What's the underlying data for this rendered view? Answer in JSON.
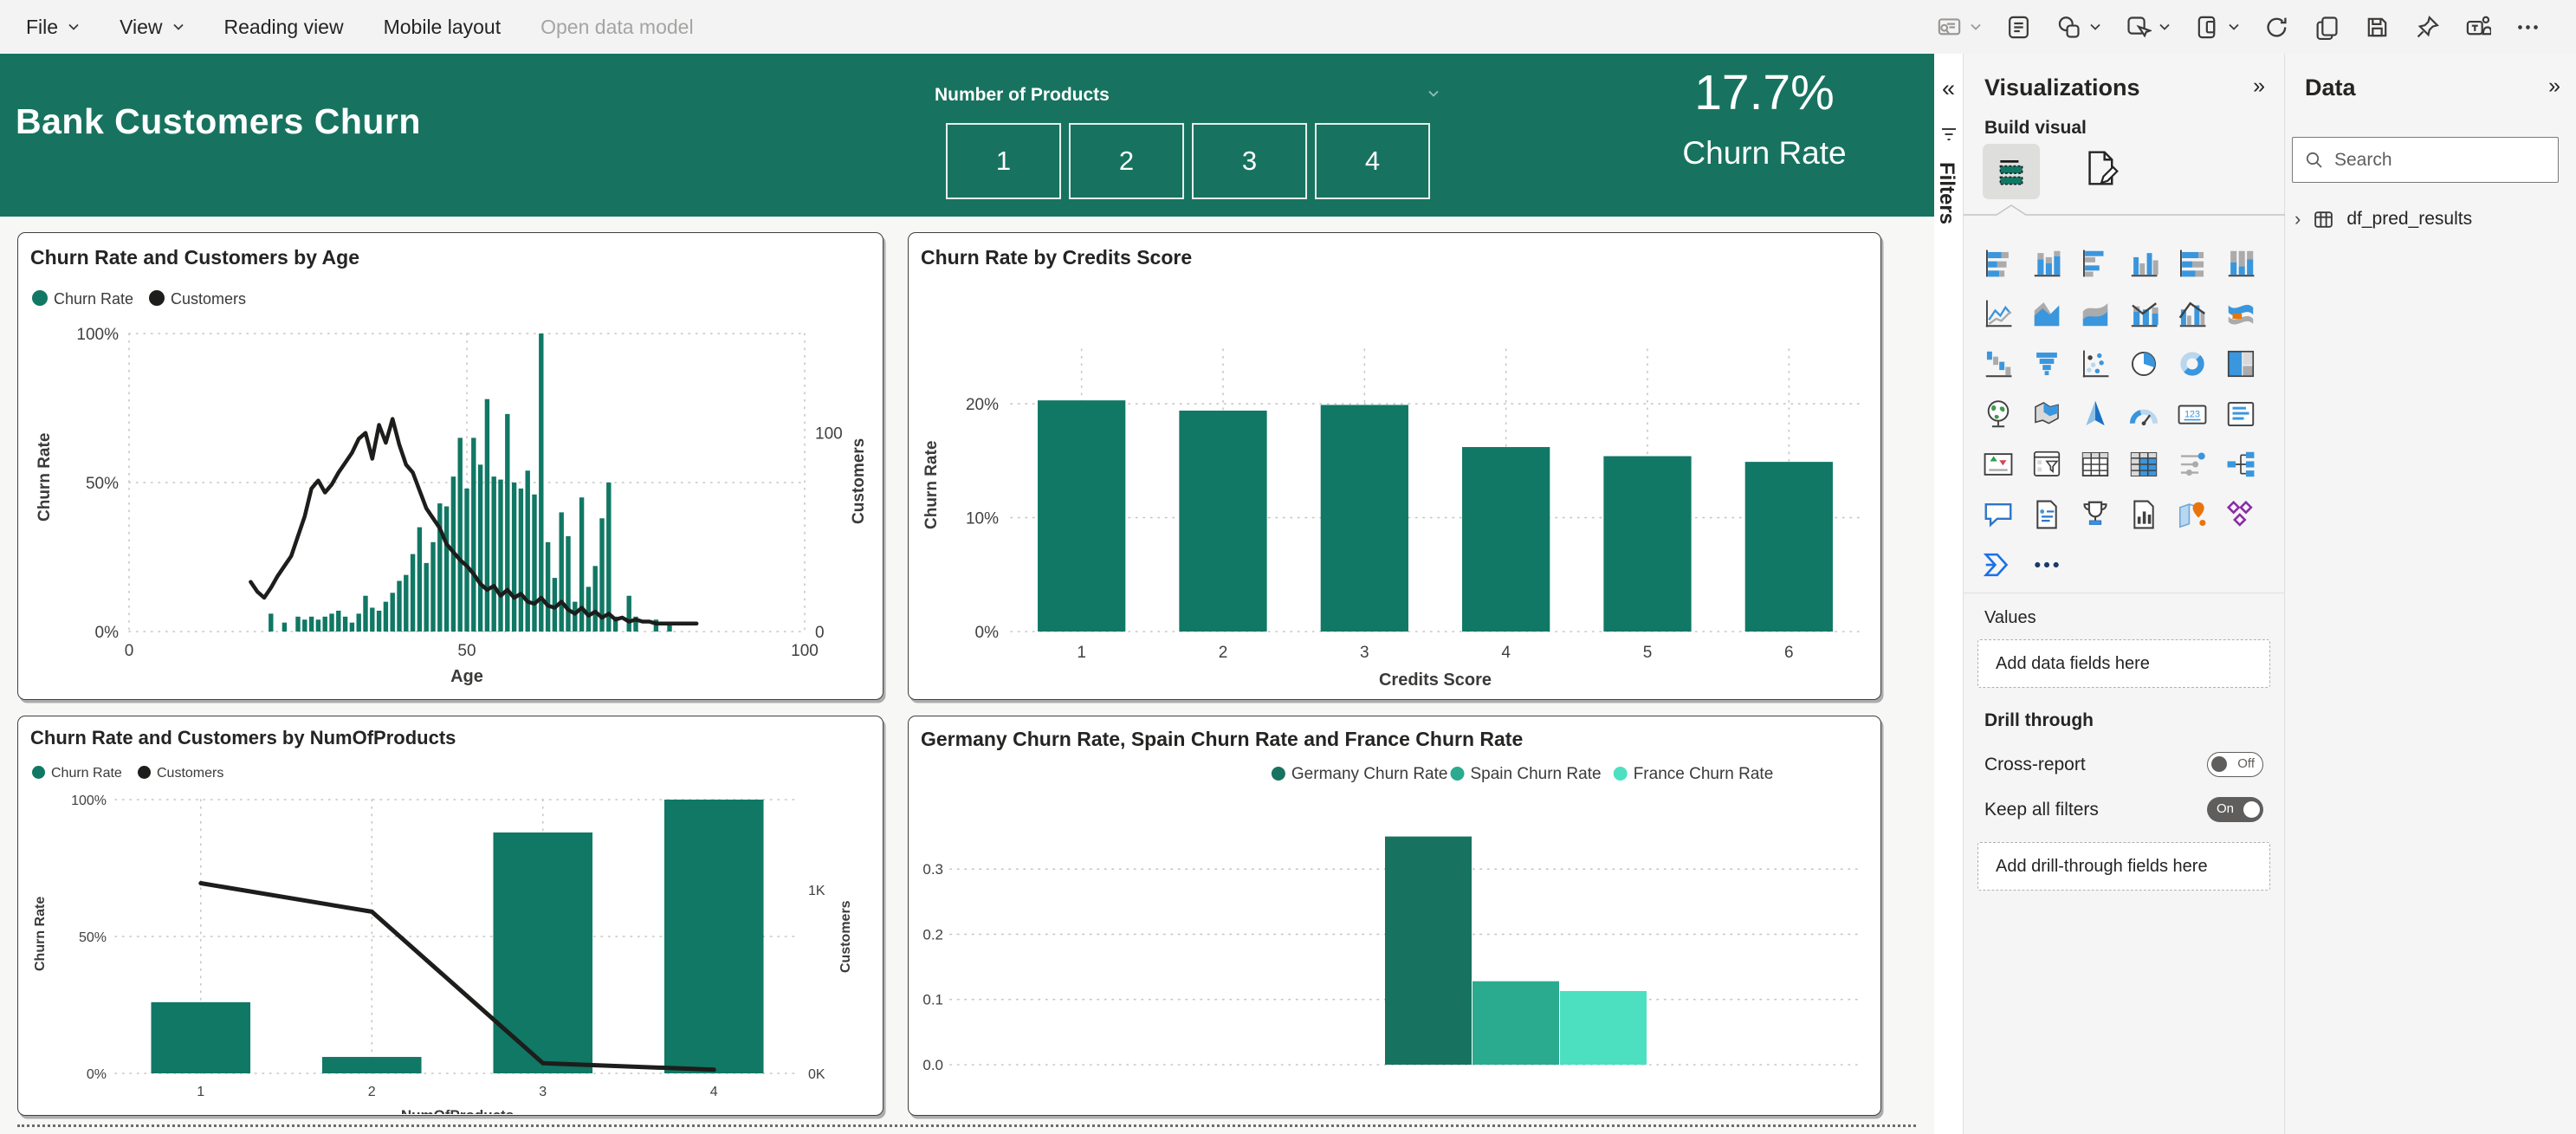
{
  "menu_bar": {
    "items": [
      {
        "label": "File",
        "chevron": true,
        "disabled": false
      },
      {
        "label": "View",
        "chevron": true,
        "disabled": false
      },
      {
        "label": "Reading view",
        "chevron": false,
        "disabled": false
      },
      {
        "label": "Mobile layout",
        "chevron": false,
        "disabled": false
      },
      {
        "label": "Open data model",
        "chevron": false,
        "disabled": true
      }
    ],
    "toolbar_icons": [
      {
        "name": "insights",
        "chevron": true,
        "disabled": true
      },
      {
        "name": "text-box",
        "chevron": false,
        "disabled": false
      },
      {
        "name": "shapes",
        "chevron": true,
        "disabled": false
      },
      {
        "name": "select",
        "chevron": true,
        "disabled": false
      },
      {
        "name": "page-view",
        "chevron": true,
        "disabled": false
      },
      {
        "name": "refresh",
        "chevron": false,
        "disabled": false
      },
      {
        "name": "duplicate-page",
        "chevron": false,
        "disabled": false
      },
      {
        "name": "save",
        "chevron": false,
        "disabled": false
      },
      {
        "name": "pin",
        "chevron": false,
        "disabled": false
      },
      {
        "name": "teams",
        "chevron": false,
        "disabled": false
      },
      {
        "name": "more-options",
        "chevron": false,
        "disabled": false
      }
    ]
  },
  "header": {
    "title": "Bank Customers Churn",
    "slicer": {
      "label": "Number of Products",
      "options": [
        "1",
        "2",
        "3",
        "4"
      ]
    },
    "kpi": {
      "value": "17.7%",
      "label": "Churn Rate"
    }
  },
  "filters_rail": {
    "collapse_icon": "«",
    "label": "Filters"
  },
  "visualizations_panel": {
    "title": "Visualizations",
    "collapse_icon": "»",
    "build_visual_label": "Build visual",
    "gallery_icons": [
      "stacked-bar-chart",
      "stacked-column-chart",
      "clustered-bar-chart",
      "clustered-column-chart",
      "100-stacked-bar-chart",
      "100-stacked-column-chart",
      "line-chart",
      "area-chart",
      "stacked-area-chart",
      "line-and-stacked-column-chart",
      "line-and-clustered-column-chart",
      "ribbon-chart",
      "waterfall-chart",
      "funnel-chart",
      "scatter-chart",
      "pie-chart",
      "donut-chart",
      "treemap",
      "map",
      "filled-map",
      "azure-map",
      "gauge",
      "card",
      "multi-row-card",
      "kpi",
      "slicer",
      "table",
      "matrix",
      "button-slicer",
      "decomposition-tree",
      "q-and-a",
      "smart-narrative",
      "metrics",
      "paginated-report",
      "arcgis-map",
      "power-apps",
      "power-automate",
      "more-visuals"
    ],
    "values_label": "Values",
    "values_placeholder": "Add data fields here",
    "drill_through_label": "Drill through",
    "cross_report": {
      "label": "Cross-report",
      "state": "Off"
    },
    "keep_all_filters": {
      "label": "Keep all filters",
      "state": "On"
    },
    "drill_placeholder": "Add drill-through fields here"
  },
  "data_panel": {
    "title": "Data",
    "collapse_icon": "»",
    "search_placeholder": "Search",
    "tables": [
      "df_pred_results"
    ]
  },
  "colors": {
    "header_green": "#17735F",
    "bar_green": "#107865",
    "spain_teal": "#2AAA8F",
    "france_mint": "#4CE0C1",
    "line_black": "#1d1d1b"
  },
  "chart_data": [
    {
      "type": "combo-column-line",
      "title": "Churn Rate and Customers by Age",
      "legend": [
        {
          "label": "Churn Rate",
          "color": "#107865"
        },
        {
          "label": "Customers",
          "color": "#1d1d1b"
        }
      ],
      "xlabel": "Age",
      "x_ticks": [
        0,
        50,
        100
      ],
      "xlim": [
        0,
        100
      ],
      "y_left": {
        "label": "Churn Rate",
        "ticks": [
          "100%",
          "50%",
          "0%"
        ],
        "max": 1.0
      },
      "y_right": {
        "label": "Customers",
        "max": 150,
        "ticks": [
          {
            "v": 100,
            "label": "100"
          },
          {
            "v": 0,
            "label": "0"
          }
        ]
      },
      "bar_color": "#107865",
      "line_color": "#1d1d1b",
      "bars": {
        "x": [
          21,
          23,
          25,
          26,
          27,
          28,
          29,
          30,
          31,
          32,
          33,
          34,
          35,
          36,
          37,
          38,
          39,
          40,
          41,
          42,
          43,
          44,
          45,
          46,
          47,
          48,
          49,
          50,
          51,
          52,
          53,
          54,
          55,
          56,
          57,
          58,
          59,
          60,
          61,
          62,
          63,
          64,
          65,
          66,
          67,
          68,
          69,
          70,
          71,
          72,
          74,
          75,
          78,
          80
        ],
        "y": [
          0.06,
          0.03,
          0.05,
          0.04,
          0.05,
          0.04,
          0.05,
          0.06,
          0.07,
          0.05,
          0.03,
          0.06,
          0.12,
          0.08,
          0.07,
          0.1,
          0.13,
          0.17,
          0.19,
          0.26,
          0.35,
          0.23,
          0.3,
          0.43,
          0.42,
          0.52,
          0.65,
          0.48,
          0.65,
          0.56,
          0.78,
          0.52,
          0.51,
          0.73,
          0.5,
          0.48,
          0.54,
          0.46,
          1.0,
          0.3,
          0.18,
          0.4,
          0.32,
          0.1,
          0.45,
          0.15,
          0.22,
          0.38,
          0.5,
          0.05,
          0.12,
          0.05,
          0.04,
          0.03
        ]
      },
      "line": {
        "x": [
          18,
          19,
          20,
          21,
          22,
          23,
          24,
          25,
          26,
          27,
          28,
          29,
          30,
          31,
          32,
          33,
          34,
          35,
          36,
          37,
          38,
          39,
          40,
          41,
          42,
          43,
          44,
          45,
          46,
          47,
          48,
          49,
          50,
          51,
          52,
          53,
          54,
          55,
          56,
          57,
          58,
          59,
          60,
          61,
          62,
          63,
          64,
          65,
          66,
          67,
          68,
          69,
          70,
          71,
          72,
          73,
          74,
          75,
          76,
          77,
          78,
          80,
          82,
          84
        ],
        "y": [
          25,
          20,
          17,
          22,
          28,
          33,
          38,
          48,
          58,
          72,
          76,
          70,
          74,
          80,
          85,
          90,
          97,
          100,
          87,
          104,
          95,
          107,
          94,
          84,
          80,
          71,
          62,
          57,
          52,
          44,
          40,
          36,
          33,
          29,
          24,
          21,
          23,
          18,
          21,
          17,
          19,
          15,
          14,
          17,
          13,
          12,
          15,
          11,
          9,
          12,
          8,
          10,
          7,
          9,
          6,
          7,
          5,
          6,
          5,
          5,
          4,
          4,
          4,
          4
        ]
      }
    },
    {
      "type": "column",
      "title": "Churn Rate by Credits Score",
      "categories": [
        "1",
        "2",
        "3",
        "4",
        "5",
        "6"
      ],
      "values": [
        20.3,
        19.4,
        19.9,
        16.2,
        15.4,
        14.9
      ],
      "xlabel": "Credits Score",
      "ylabel": "Churn Rate",
      "y_ticks": [
        {
          "v": 20,
          "label": "20%"
        },
        {
          "v": 10,
          "label": "10%"
        },
        {
          "v": 0,
          "label": "0%"
        }
      ],
      "ylim": [
        0,
        24.8
      ],
      "bar_color": "#107865"
    },
    {
      "type": "combo-column-line",
      "title": "Churn Rate and Customers by NumOfProducts",
      "legend": [
        {
          "label": "Churn Rate",
          "color": "#107865"
        },
        {
          "label": "Customers",
          "color": "#1d1d1b"
        }
      ],
      "xlabel": "NumOfProducts",
      "categories": [
        "1",
        "2",
        "3",
        "4"
      ],
      "y_left": {
        "label": "Churn Rate",
        "ticks": [
          "100%",
          "50%",
          "0%"
        ],
        "max": 100
      },
      "y_right": {
        "label": "Customers",
        "max": 1.49,
        "ticks": [
          {
            "v": 1,
            "label": "1K"
          },
          {
            "v": 0,
            "label": "0K"
          }
        ]
      },
      "bar_color": "#107865",
      "line_color": "#1d1d1b",
      "bars": [
        26,
        6,
        88,
        100
      ],
      "line": [
        1.035,
        0.88,
        0.055,
        0.02
      ]
    },
    {
      "type": "clustered-column",
      "title": "Germany Churn Rate, Spain Churn Rate and France Churn Rate",
      "series": [
        {
          "name": "Germany Churn Rate",
          "color": "#17735F",
          "value": 0.35
        },
        {
          "name": "Spain Churn Rate",
          "color": "#2AAA8F",
          "value": 0.128
        },
        {
          "name": "France Churn Rate",
          "color": "#4CE0C1",
          "value": 0.113
        }
      ],
      "y_ticks": [
        {
          "v": 0.3,
          "label": "0.3"
        },
        {
          "v": 0.2,
          "label": "0.2"
        },
        {
          "v": 0.1,
          "label": "0.1"
        },
        {
          "v": 0.0,
          "label": "0.0"
        }
      ],
      "ylim": [
        0,
        0.38
      ],
      "legend_position": "top-center"
    }
  ]
}
